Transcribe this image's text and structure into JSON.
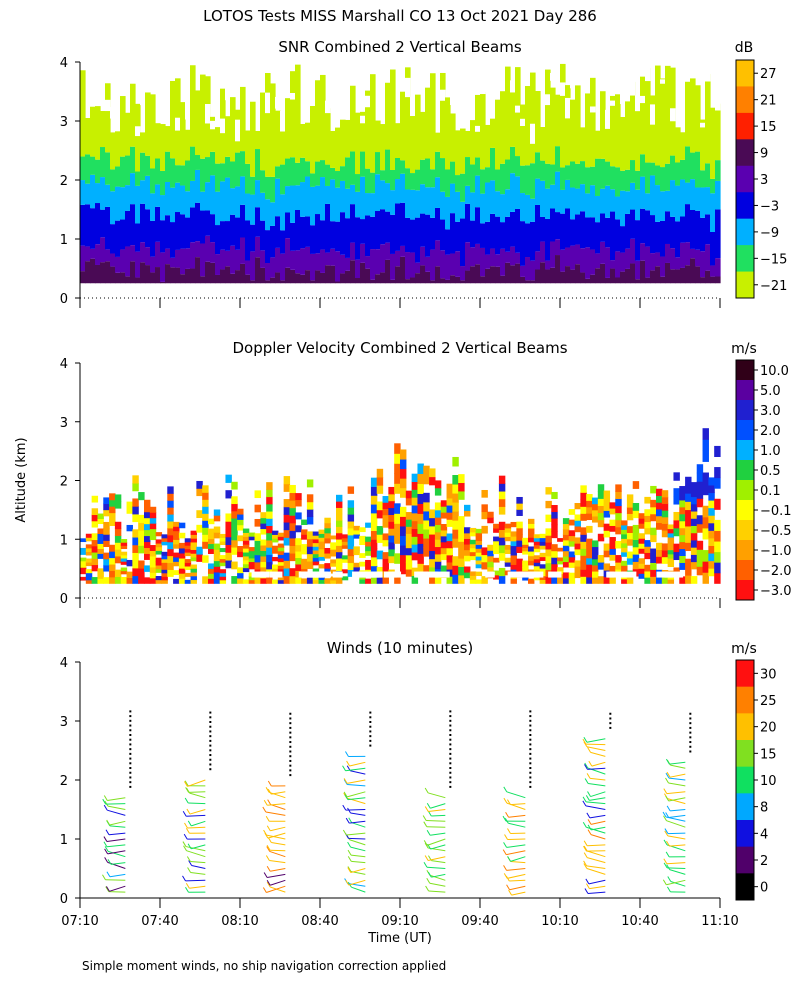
{
  "header": {
    "title": "LOTOS Tests MISS Marshall CO  13 Oct 2021 Day 286"
  },
  "common": {
    "ylabel": "Altitude (km)",
    "xlabel": "Time (UT)",
    "yticks": [
      "0",
      "1",
      "2",
      "3",
      "4"
    ],
    "xticks": [
      "07:10",
      "07:40",
      "08:10",
      "08:40",
      "09:10",
      "09:40",
      "10:10",
      "10:40",
      "11:10"
    ],
    "footnote": "Simple moment winds, no ship navigation correction applied"
  },
  "chart_data": [
    {
      "type": "heatmap",
      "title": "SNR Combined 2 Vertical Beams",
      "colorbar_unit": "dB",
      "colorbar_labels": [
        "27",
        "21",
        "15",
        "9",
        "3",
        "−3",
        "−9",
        "−15",
        "−21"
      ],
      "colorbar_colors": [
        "#ffc000",
        "#ff8000",
        "#ff2000",
        "#4a0a55",
        "#5a00b0",
        "#0000e0",
        "#00b0ff",
        "#20e060",
        "#c8f000"
      ],
      "xlim": [
        "07:10",
        "11:10"
      ],
      "ylim": [
        0,
        4
      ],
      "profile_bins": [
        {
          "top_km": 0.45,
          "value": 9
        },
        {
          "top_km": 0.8,
          "value": 3
        },
        {
          "top_km": 1.4,
          "value": -3
        },
        {
          "top_km": 1.9,
          "value": -9
        },
        {
          "top_km": 2.3,
          "value": -15
        },
        {
          "top_km": 3.8,
          "value": -21
        }
      ]
    },
    {
      "type": "heatmap",
      "title": "Doppler Velocity Combined 2 Vertical Beams",
      "colorbar_unit": "m/s",
      "colorbar_labels": [
        "10.0",
        "5.0",
        "3.0",
        "2.0",
        "1.0",
        "0.5",
        "0.1",
        "−0.1",
        "−0.5",
        "−1.0",
        "−2.0",
        "−3.0"
      ],
      "colorbar_colors": [
        "#300018",
        "#5a00a0",
        "#2020d0",
        "#0050ff",
        "#00b0ff",
        "#20d040",
        "#a0f000",
        "#ffff00",
        "#ffd000",
        "#ffa000",
        "#ff6000",
        "#ff1010"
      ],
      "xlim": [
        "07:10",
        "11:10"
      ],
      "ylim": [
        0,
        4
      ]
    },
    {
      "type": "scatter",
      "title": "Winds (10 minutes)",
      "colorbar_unit": "m/s",
      "colorbar_labels": [
        "30",
        "25",
        "20",
        "15",
        "10",
        "8",
        "4",
        "2",
        "0"
      ],
      "colorbar_colors": [
        "#ff1010",
        "#ff8000",
        "#ffc000",
        "#80e020",
        "#10e060",
        "#00a8ff",
        "#1010e0",
        "#50006a",
        "#000000"
      ],
      "xlim": [
        "07:10",
        "11:10"
      ],
      "ylim": [
        0,
        4
      ],
      "profile_times": [
        "07:30",
        "08:00",
        "08:30",
        "09:00",
        "09:30",
        "10:00",
        "10:30",
        "11:00"
      ],
      "profile_top_km": [
        1.8,
        2.1,
        2.0,
        2.5,
        1.8,
        1.8,
        2.8,
        2.4
      ]
    }
  ]
}
